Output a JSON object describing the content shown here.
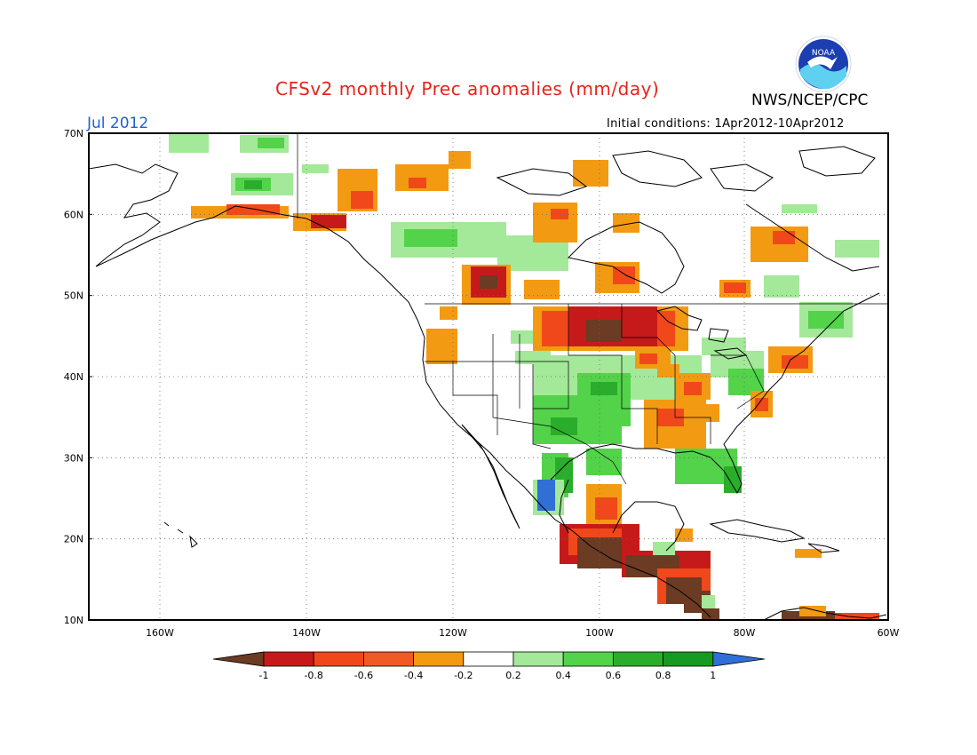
{
  "header": {
    "title": "CFSv2 monthly Prec anomalies (mm/day)",
    "agency": "NWS/NCEP/CPC",
    "month": "Jul 2012",
    "initial_conditions": "Initial conditions: 1Apr2012-10Apr2012",
    "logo_text": "NOAA"
  },
  "colors": {
    "title": "#e8231a",
    "month": "#1f5fd6",
    "brown": "#6b3b23",
    "darkred": "#c61a1a",
    "red": "#f0481b",
    "orange": "#f39a13",
    "lightgreen": "#a4e89a",
    "green": "#52d34a",
    "dgreen": "#2aad2b",
    "ddgreen": "#159a22",
    "blue": "#2f6fd6"
  },
  "map": {
    "lat_labels": [
      "70N",
      "60N",
      "50N",
      "40N",
      "30N",
      "20N",
      "10N"
    ],
    "lon_labels": [
      "160W",
      "140W",
      "120W",
      "100W",
      "80W",
      "60W"
    ]
  },
  "colorbar": {
    "ticks": [
      "-1",
      "-0.8",
      "-0.6",
      "-0.4",
      "-0.2",
      "0.2",
      "0.4",
      "0.6",
      "0.8",
      "1"
    ]
  }
}
